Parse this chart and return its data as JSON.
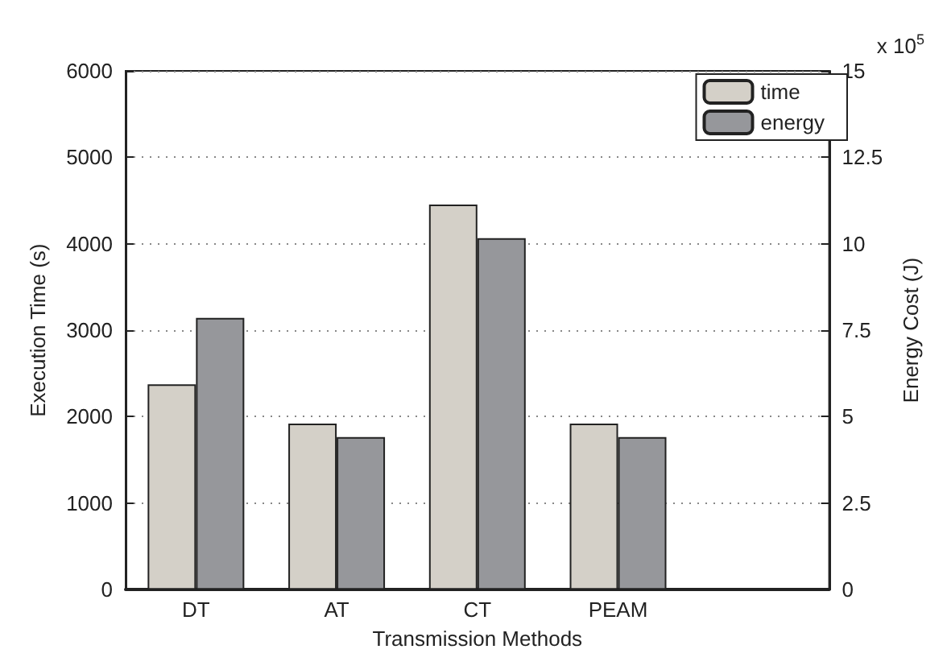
{
  "chart_data": {
    "type": "bar",
    "xlabel": "Transmission Methods",
    "ylabel": "Execution Time (s)",
    "y2label": "Energy Cost (J)",
    "categories": [
      "DT",
      "AT",
      "CT",
      "PEAM",
      null
    ],
    "series": [
      {
        "name": "time",
        "color": "#d4d0c8",
        "values": [
          2375,
          1920,
          4455,
          1920,
          null
        ]
      },
      {
        "name": "energy",
        "color": "#96979b",
        "axis": "y2",
        "values": [
          7.86,
          4.41,
          10.16,
          4.41,
          null
        ]
      }
    ],
    "ylim": [
      0,
      6000
    ],
    "yticks": [
      0,
      1000,
      2000,
      3000,
      4000,
      5000,
      6000
    ],
    "y2lim": [
      0,
      15
    ],
    "y2ticks": [
      0,
      2.5,
      5,
      7.5,
      10,
      12.5,
      15
    ],
    "annotations": [
      "x 10$^{5}$"
    ],
    "grid": "y",
    "legend": "top right"
  }
}
